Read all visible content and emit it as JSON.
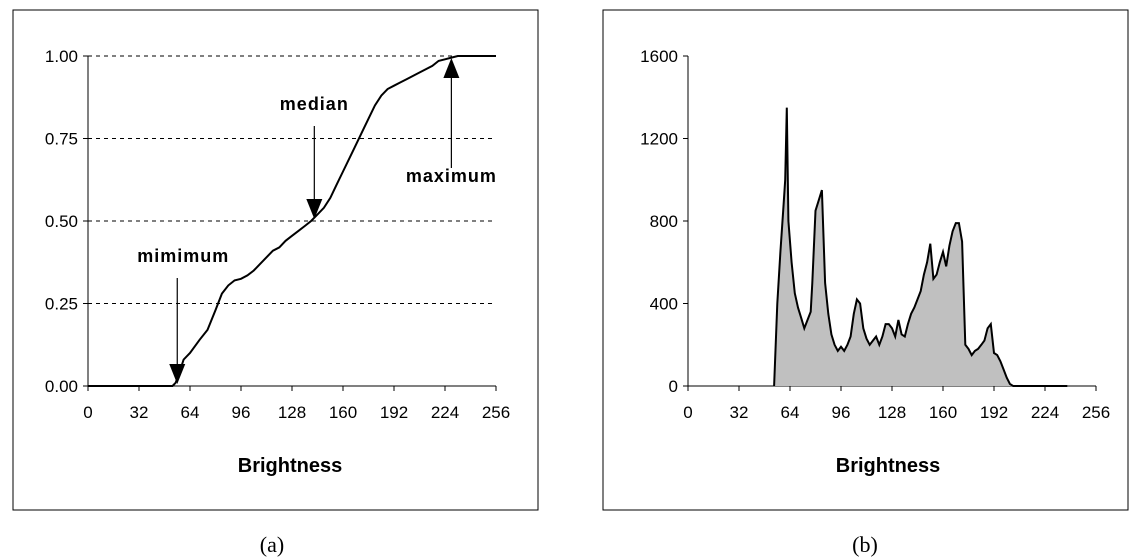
{
  "chart_data": [
    {
      "type": "line",
      "caption": "(a)",
      "xlabel": "Brightness",
      "ylabel": "",
      "xlim": [
        0,
        256
      ],
      "ylim": [
        0,
        1
      ],
      "xticks": [
        "0",
        "32",
        "64",
        "96",
        "128",
        "160",
        "192",
        "224",
        "256"
      ],
      "yticks": [
        "0.00",
        "0.25",
        "0.50",
        "0.75",
        "1.00"
      ],
      "grid": "horizontal-dashed",
      "series": [
        {
          "x": [
            0,
            53,
            55,
            58,
            60,
            64,
            70,
            75,
            80,
            84,
            88,
            92,
            96,
            100,
            104,
            108,
            112,
            116,
            120,
            124,
            128,
            132,
            136,
            140,
            144,
            148,
            152,
            156,
            160,
            164,
            168,
            172,
            176,
            180,
            184,
            188,
            192,
            196,
            200,
            208,
            216,
            220,
            224,
            228,
            232,
            256
          ],
          "y": [
            0,
            0,
            0.01,
            0.05,
            0.08,
            0.1,
            0.14,
            0.17,
            0.23,
            0.28,
            0.305,
            0.32,
            0.325,
            0.335,
            0.35,
            0.37,
            0.39,
            0.41,
            0.42,
            0.44,
            0.455,
            0.47,
            0.485,
            0.5,
            0.52,
            0.54,
            0.57,
            0.61,
            0.65,
            0.69,
            0.73,
            0.77,
            0.81,
            0.85,
            0.88,
            0.9,
            0.91,
            0.92,
            0.93,
            0.95,
            0.97,
            0.985,
            0.99,
            0.995,
            1.0,
            1.0
          ]
        }
      ],
      "annotations": [
        {
          "text": "mimimum",
          "x": 56,
          "y": 0.0
        },
        {
          "text": "median",
          "x": 142,
          "y": 0.5
        },
        {
          "text": "maximum",
          "x": 228,
          "y": 1.0
        }
      ]
    },
    {
      "type": "area",
      "caption": "(b)",
      "xlabel": "Brightness",
      "ylabel": "",
      "xlim": [
        0,
        256
      ],
      "ylim": [
        0,
        1600
      ],
      "xticks": [
        "0",
        "32",
        "64",
        "96",
        "128",
        "160",
        "192",
        "224",
        "256"
      ],
      "yticks": [
        "0",
        "400",
        "800",
        "1200",
        "1600"
      ],
      "grid": "none",
      "fill": "#c0c0c0",
      "series": [
        {
          "x": [
            54,
            56,
            58,
            60,
            61,
            62,
            63,
            65,
            67,
            69,
            71,
            73,
            75,
            77,
            78,
            80,
            82,
            84,
            86,
            88,
            90,
            92,
            94,
            96,
            98,
            100,
            102,
            104,
            106,
            108,
            110,
            112,
            114,
            116,
            118,
            120,
            122,
            124,
            126,
            128,
            130,
            132,
            134,
            136,
            138,
            140,
            142,
            144,
            146,
            148,
            150,
            152,
            154,
            156,
            158,
            160,
            162,
            164,
            166,
            168,
            170,
            172,
            174,
            176,
            178,
            180,
            182,
            184,
            186,
            188,
            190,
            192,
            194,
            196,
            198,
            200,
            202,
            204,
            206,
            208,
            210,
            212,
            214,
            216,
            218,
            220,
            222,
            224,
            226,
            228,
            230,
            232,
            234,
            236,
            238
          ],
          "y": [
            0,
            400,
            650,
            880,
            1000,
            1350,
            800,
            600,
            450,
            380,
            330,
            280,
            320,
            360,
            500,
            850,
            900,
            950,
            500,
            350,
            250,
            200,
            170,
            190,
            170,
            200,
            240,
            350,
            420,
            400,
            280,
            230,
            200,
            220,
            240,
            200,
            240,
            300,
            300,
            280,
            240,
            320,
            250,
            240,
            300,
            350,
            380,
            420,
            460,
            540,
            600,
            690,
            520,
            540,
            600,
            650,
            580,
            680,
            750,
            790,
            790,
            700,
            200,
            180,
            150,
            170,
            180,
            200,
            220,
            280,
            300,
            160,
            150,
            120,
            80,
            40,
            10,
            0,
            0,
            0,
            0,
            0,
            0,
            0,
            0,
            0,
            0,
            0,
            0,
            0,
            0,
            0,
            0,
            0,
            0
          ]
        }
      ]
    }
  ]
}
